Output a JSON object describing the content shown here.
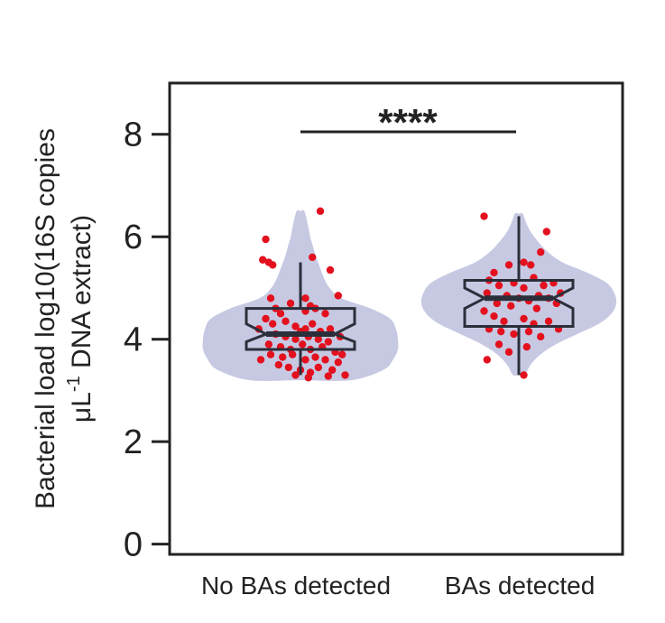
{
  "chart_data": {
    "type": "violin",
    "categories": [
      "No BAs detected",
      "BAs detected"
    ],
    "ylabel_line1": "Bacterial load log10(16S copies",
    "ylabel_line2_prefix": "μL",
    "ylabel_line2_sup": "-1",
    "ylabel_line2_suffix": " DNA extract)",
    "ylim": [
      -0.2,
      9
    ],
    "yticks": [
      "0",
      "2",
      "4",
      "6",
      "8"
    ],
    "significance": "****",
    "violin_color": "#c7c9e3",
    "point_color": "#e3101e",
    "box_color": "#2b2f3a",
    "groups": [
      {
        "name": "No BAs detected",
        "box": {
          "q1": 3.8,
          "median": 4.1,
          "q3": 4.6,
          "notch_low": 3.95,
          "notch_high": 4.3,
          "whisker_low": 3.3,
          "whisker_high": 5.5
        },
        "violin": {
          "y": [
            3.2,
            3.4,
            3.6,
            3.8,
            4.0,
            4.2,
            4.4,
            4.6,
            4.8,
            5.0,
            5.2,
            5.4,
            5.6,
            5.8,
            6.0,
            6.2,
            6.5
          ],
          "width": [
            0.52,
            0.85,
            0.95,
            1.0,
            1.0,
            0.98,
            0.92,
            0.72,
            0.42,
            0.3,
            0.24,
            0.2,
            0.16,
            0.13,
            0.1,
            0.08,
            0.04
          ]
        },
        "points": [
          [
            -0.38,
            5.55
          ],
          [
            -0.32,
            5.5
          ],
          [
            -0.28,
            5.45
          ],
          [
            -0.35,
            5.95
          ],
          [
            0.12,
            5.6
          ],
          [
            0.2,
            6.5
          ],
          [
            0.3,
            5.35
          ],
          [
            0.38,
            4.85
          ],
          [
            -0.3,
            4.8
          ],
          [
            -0.25,
            4.6
          ],
          [
            -0.2,
            4.5
          ],
          [
            -0.1,
            4.7
          ],
          [
            0.05,
            4.55
          ],
          [
            0.1,
            4.65
          ],
          [
            0.15,
            4.6
          ],
          [
            0.25,
            4.5
          ],
          [
            -0.35,
            4.4
          ],
          [
            -0.28,
            4.3
          ],
          [
            -0.15,
            4.35
          ],
          [
            -0.05,
            4.25
          ],
          [
            0.05,
            4.2
          ],
          [
            0.12,
            4.3
          ],
          [
            0.2,
            4.15
          ],
          [
            0.3,
            4.2
          ],
          [
            0.4,
            4.05
          ],
          [
            -0.25,
            4.1
          ],
          [
            -0.15,
            4.05
          ],
          [
            -0.05,
            4.0
          ],
          [
            0.0,
            4.15
          ],
          [
            0.08,
            4.05
          ],
          [
            0.18,
            4.0
          ],
          [
            0.28,
            3.95
          ],
          [
            -0.32,
            3.9
          ],
          [
            -0.2,
            3.85
          ],
          [
            -0.1,
            3.8
          ],
          [
            0.02,
            3.9
          ],
          [
            0.1,
            3.8
          ],
          [
            0.22,
            3.85
          ],
          [
            0.35,
            3.75
          ],
          [
            -0.3,
            3.7
          ],
          [
            -0.18,
            3.65
          ],
          [
            -0.08,
            3.7
          ],
          [
            0.05,
            3.6
          ],
          [
            0.15,
            3.65
          ],
          [
            0.25,
            3.6
          ],
          [
            0.38,
            3.55
          ],
          [
            -0.22,
            3.5
          ],
          [
            -0.12,
            3.45
          ],
          [
            0.0,
            3.4
          ],
          [
            0.1,
            3.35
          ],
          [
            0.18,
            3.45
          ],
          [
            0.32,
            3.4
          ],
          [
            -0.05,
            3.3
          ],
          [
            0.08,
            3.25
          ],
          [
            0.28,
            3.28
          ],
          [
            0.45,
            3.3
          ],
          [
            -0.4,
            3.6
          ],
          [
            0.42,
            3.7
          ],
          [
            -0.42,
            4.2
          ],
          [
            0.05,
            4.8
          ]
        ]
      },
      {
        "name": "BAs detected",
        "box": {
          "q1": 4.25,
          "median": 4.8,
          "q3": 5.15,
          "notch_low": 4.6,
          "notch_high": 5.0,
          "whisker_low": 3.3,
          "whisker_high": 6.4
        },
        "violin": {
          "y": [
            3.3,
            3.5,
            3.7,
            3.9,
            4.1,
            4.3,
            4.5,
            4.7,
            4.9,
            5.1,
            5.3,
            5.5,
            5.7,
            5.9,
            6.1,
            6.3,
            6.45
          ],
          "width": [
            0.06,
            0.12,
            0.22,
            0.38,
            0.6,
            0.82,
            0.95,
            1.0,
            0.98,
            0.9,
            0.7,
            0.45,
            0.3,
            0.2,
            0.12,
            0.07,
            0.04
          ]
        },
        "points": [
          [
            -0.35,
            6.4
          ],
          [
            0.28,
            6.1
          ],
          [
            0.22,
            5.7
          ],
          [
            0.05,
            5.5
          ],
          [
            -0.1,
            5.45
          ],
          [
            0.12,
            5.45
          ],
          [
            -0.25,
            5.3
          ],
          [
            0.15,
            5.2
          ],
          [
            -0.3,
            5.15
          ],
          [
            -0.2,
            5.05
          ],
          [
            -0.05,
            5.1
          ],
          [
            0.05,
            5.0
          ],
          [
            0.25,
            5.05
          ],
          [
            0.35,
            5.1
          ],
          [
            -0.32,
            4.9
          ],
          [
            -0.12,
            4.85
          ],
          [
            0.0,
            4.8
          ],
          [
            0.1,
            4.75
          ],
          [
            0.2,
            4.85
          ],
          [
            0.3,
            4.8
          ],
          [
            -0.22,
            4.7
          ],
          [
            -0.08,
            4.65
          ],
          [
            0.18,
            4.6
          ],
          [
            0.38,
            4.7
          ],
          [
            -0.35,
            4.55
          ],
          [
            -0.25,
            4.45
          ],
          [
            -0.15,
            4.35
          ],
          [
            0.05,
            4.4
          ],
          [
            0.15,
            4.3
          ],
          [
            0.3,
            4.35
          ],
          [
            -0.3,
            4.2
          ],
          [
            -0.18,
            4.15
          ],
          [
            -0.05,
            4.1
          ],
          [
            0.1,
            4.15
          ],
          [
            0.22,
            4.05
          ],
          [
            0.4,
            4.2
          ],
          [
            -0.2,
            3.9
          ],
          [
            0.08,
            3.85
          ],
          [
            -0.1,
            3.75
          ],
          [
            -0.32,
            3.6
          ],
          [
            0.05,
            3.3
          ],
          [
            0.42,
            4.9
          ]
        ]
      }
    ]
  }
}
